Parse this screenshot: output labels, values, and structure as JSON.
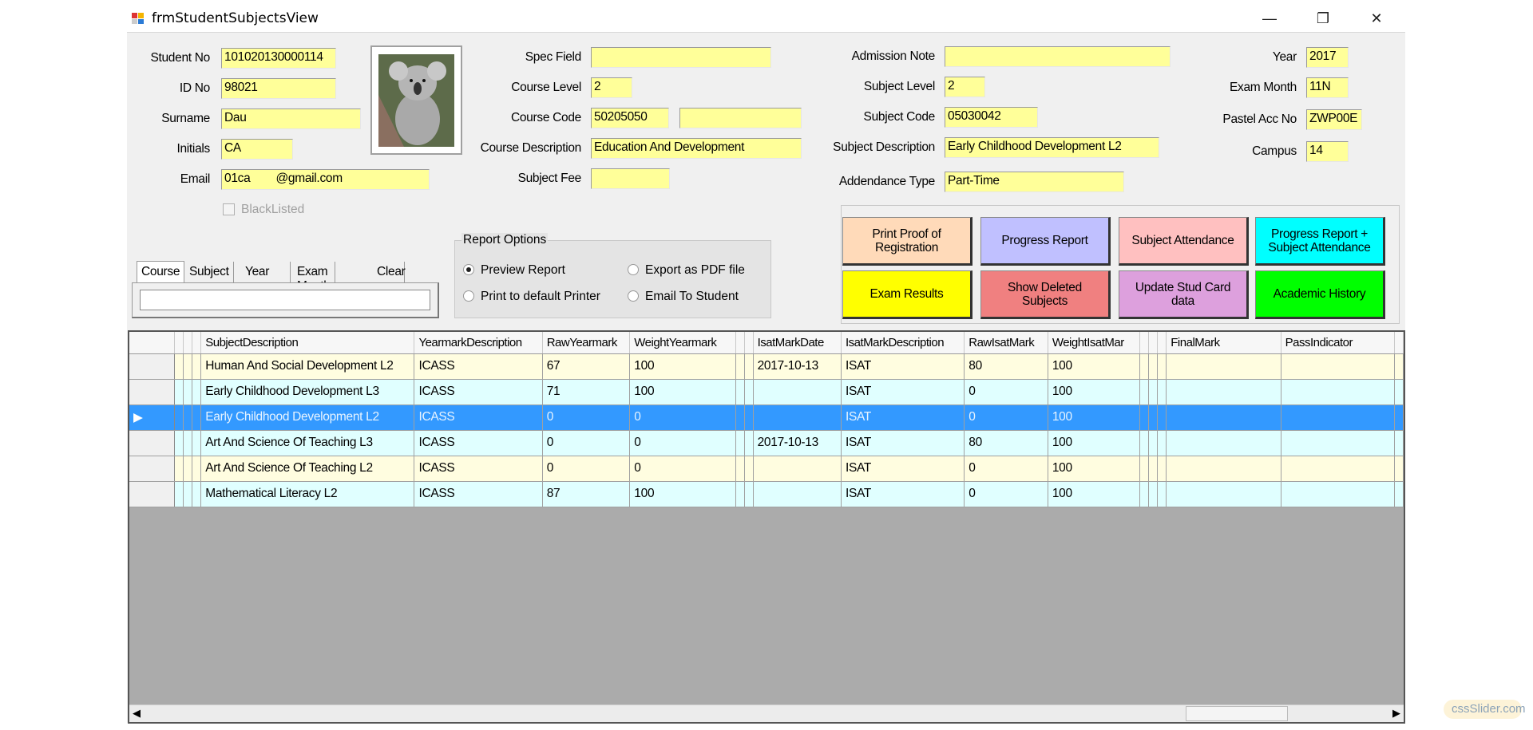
{
  "window": {
    "title": "frmStudentSubjectsView",
    "icon": "app-form-icon",
    "minimize": "—",
    "restore": "❐",
    "close": "✕"
  },
  "student": {
    "student_no_label": "Student No",
    "student_no": "101020130000114",
    "id_no_label": "ID No",
    "id_no": "98021",
    "surname_label": "Surname",
    "surname": "Dau",
    "initials_label": "Initials",
    "initials": "CA",
    "email_label": "Email",
    "email": "01ca        @gmail.com",
    "blacklisted_label": "BlackListed",
    "blacklisted": false
  },
  "course": {
    "spec_field_label": "Spec Field",
    "spec_field": "",
    "course_level_label": "Course Level",
    "course_level": "2",
    "course_code_label": "Course Code",
    "course_code": "50205050",
    "course_code_extra": "",
    "course_description_label": "Course Description",
    "course_description": "Education And Development",
    "subject_fee_label": "Subject Fee",
    "subject_fee": ""
  },
  "subject": {
    "admission_note_label": "Admission Note",
    "admission_note": "",
    "subject_level_label": "Subject Level",
    "subject_level": "2",
    "subject_code_label": "Subject Code",
    "subject_code": "05030042",
    "subject_description_label": "Subject Description",
    "subject_description": "Early Childhood Development L2",
    "attendance_type_label": "Addendance Type",
    "attendance_type": "Part-Time"
  },
  "meta": {
    "year_label": "Year",
    "year": "2017",
    "exam_month_label": "Exam Month",
    "exam_month": "11N",
    "pastel_label": "Pastel Acc No",
    "pastel": "ZWP00E",
    "campus_label": "Campus",
    "campus": "14"
  },
  "filter_tabs": [
    "Course",
    "Subject",
    "Year",
    "Exam Month",
    "Clear"
  ],
  "filter_value": "",
  "report_options": {
    "title": "Report Options",
    "options": [
      "Preview Report",
      "Export as PDF file",
      "Print to default Printer",
      "Email To Student"
    ],
    "selected": "Preview Report"
  },
  "buttons": [
    {
      "label": "Print Proof of Registration",
      "color": "#ffdab9"
    },
    {
      "label": "Progress Report",
      "color": "#c0c0ff"
    },
    {
      "label": "Subject Attendance",
      "color": "#ffc0c0"
    },
    {
      "label": "Progress Report + Subject Attendance",
      "color": "#00ffff"
    },
    {
      "label": "Exam Results",
      "color": "#ffff00"
    },
    {
      "label": "Show Deleted Subjects",
      "color": "#f08080"
    },
    {
      "label": "Update Stud Card data",
      "color": "#dda0dd"
    },
    {
      "label": "Academic History",
      "color": "#00ff00"
    }
  ],
  "grid": {
    "columns": [
      "",
      "",
      "",
      "",
      "SubjectDescription",
      "YearmarkDescription",
      "RawYearmark",
      "WeightYearmark",
      "",
      "",
      "IsatMarkDate",
      "IsatMarkDescription",
      "RawIsatMark",
      "WeightIsatMar",
      "",
      "",
      "",
      "FinalMark",
      "PassIndicator",
      ""
    ],
    "rows": [
      {
        "style": "yel",
        "cells": [
          "",
          "",
          "",
          "",
          "Human And Social Development L2",
          "ICASS",
          "67",
          "100",
          "",
          "",
          "2017-10-13",
          "ISAT",
          "80",
          "100",
          "",
          "",
          "",
          "",
          "",
          ""
        ]
      },
      {
        "style": "cyn",
        "cells": [
          "",
          "",
          "",
          "",
          "Early Childhood Development L3",
          "ICASS",
          "71",
          "100",
          "",
          "",
          "",
          "ISAT",
          "0",
          "100",
          "",
          "",
          "",
          "",
          "",
          ""
        ]
      },
      {
        "style": "sel",
        "cells": [
          "▶",
          "",
          "",
          "",
          "Early Childhood Development L2",
          "ICASS",
          "0",
          "0",
          "",
          "",
          "",
          "ISAT",
          "0",
          "100",
          "",
          "",
          "",
          "",
          "",
          ""
        ]
      },
      {
        "style": "cyn",
        "cells": [
          "",
          "",
          "",
          "",
          "Art And Science Of Teaching L3",
          "ICASS",
          "0",
          "0",
          "",
          "",
          "2017-10-13",
          "ISAT",
          "80",
          "100",
          "",
          "",
          "",
          "",
          "",
          ""
        ]
      },
      {
        "style": "yel",
        "cells": [
          "",
          "",
          "",
          "",
          "Art And Science Of Teaching L2",
          "ICASS",
          "0",
          "0",
          "",
          "",
          "",
          "ISAT",
          "0",
          "100",
          "",
          "",
          "",
          "",
          "",
          ""
        ]
      },
      {
        "style": "cyn",
        "cells": [
          "",
          "",
          "",
          "",
          "Mathematical Literacy L2",
          "ICASS",
          "87",
          "100",
          "",
          "",
          "",
          "ISAT",
          "0",
          "100",
          "",
          "",
          "",
          "",
          "",
          ""
        ]
      }
    ]
  },
  "watermark": "cssSlider.com"
}
